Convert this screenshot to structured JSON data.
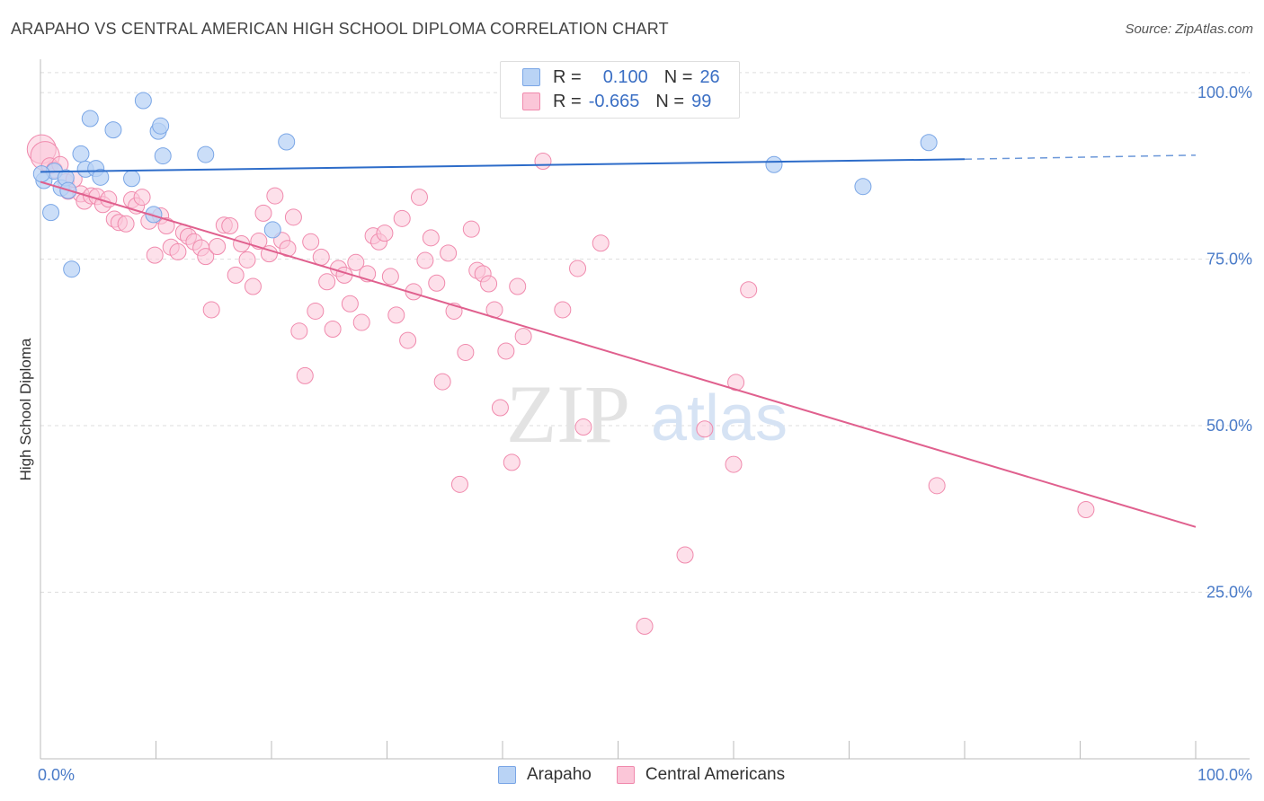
{
  "header": {
    "title": "ARAPAHO VS CENTRAL AMERICAN HIGH SCHOOL DIPLOMA CORRELATION CHART",
    "source": "Source: ZipAtlas.com"
  },
  "legend": {
    "rows": [
      {
        "r_label": "R =",
        "r_value": "0.100",
        "n_label": "N =",
        "n_value": "26",
        "color": "#b9d3f5",
        "border": "#7aa6e6"
      },
      {
        "r_label": "R =",
        "r_value": "-0.665",
        "n_label": "N =",
        "n_value": "99",
        "color": "#fbc6d8",
        "border": "#f08aad"
      }
    ]
  },
  "bottom_legend": {
    "items": [
      {
        "label": "Arapaho",
        "color": "#b9d3f5",
        "border": "#7aa6e6"
      },
      {
        "label": "Central Americans",
        "color": "#fbc6d8",
        "border": "#f08aad"
      }
    ]
  },
  "watermark": {
    "zip": "ZIP",
    "atlas": "atlas"
  },
  "chart_data": {
    "type": "scatter",
    "title": "ARAPAHO VS CENTRAL AMERICAN HIGH SCHOOL DIPLOMA CORRELATION CHART",
    "xlabel": "",
    "ylabel": "High School Diploma",
    "xlim": [
      0,
      100
    ],
    "ylim": [
      0,
      105
    ],
    "x_tick_labels": [
      "0.0%",
      "100.0%"
    ],
    "y_ticks": [
      25,
      50,
      75,
      100
    ],
    "y_tick_labels": [
      "25.0%",
      "50.0%",
      "75.0%",
      "100.0%"
    ],
    "grid": true,
    "series": [
      {
        "name": "Arapaho",
        "color": "#7aa6e6",
        "fill": "#b9d3f5",
        "line_color": "#2d6cc9",
        "trend": {
          "x0": 0,
          "y0": 88.1,
          "x1": 80,
          "y1": 90.0,
          "dash_to_x": 100,
          "dash_to_y": 90.6
        },
        "points": [
          {
            "x": 0.3,
            "y": 86.8
          },
          {
            "x": 0.9,
            "y": 82.0
          },
          {
            "x": 1.2,
            "y": 88.2
          },
          {
            "x": 1.8,
            "y": 85.7
          },
          {
            "x": 2.2,
            "y": 87.2
          },
          {
            "x": 2.4,
            "y": 85.3
          },
          {
            "x": 2.7,
            "y": 73.5
          },
          {
            "x": 3.5,
            "y": 90.8
          },
          {
            "x": 3.9,
            "y": 88.5
          },
          {
            "x": 4.3,
            "y": 96.1
          },
          {
            "x": 4.8,
            "y": 88.6
          },
          {
            "x": 5.2,
            "y": 87.3
          },
          {
            "x": 6.3,
            "y": 94.4
          },
          {
            "x": 7.9,
            "y": 87.1
          },
          {
            "x": 8.9,
            "y": 98.8
          },
          {
            "x": 9.8,
            "y": 81.7
          },
          {
            "x": 10.2,
            "y": 94.2
          },
          {
            "x": 10.4,
            "y": 95.0
          },
          {
            "x": 10.6,
            "y": 90.5
          },
          {
            "x": 14.3,
            "y": 90.7
          },
          {
            "x": 20.1,
            "y": 79.4
          },
          {
            "x": 21.3,
            "y": 92.6
          },
          {
            "x": 63.5,
            "y": 89.2
          },
          {
            "x": 71.2,
            "y": 85.9
          },
          {
            "x": 76.9,
            "y": 92.5
          },
          {
            "x": 0.1,
            "y": 87.8
          }
        ]
      },
      {
        "name": "Central Americans",
        "color": "#f08aad",
        "fill": "#fbc6d8",
        "line_color": "#e0608e",
        "trend": {
          "x0": 0,
          "y0": 86.6,
          "x1": 100,
          "y1": 34.8
        },
        "points": [
          {
            "x": 0.1,
            "y": 91.5,
            "big": true
          },
          {
            "x": 0.4,
            "y": 90.5,
            "big": true
          },
          {
            "x": 0.8,
            "y": 89.0
          },
          {
            "x": 1.2,
            "y": 88.4
          },
          {
            "x": 1.7,
            "y": 89.2
          },
          {
            "x": 2.2,
            "y": 86.6
          },
          {
            "x": 2.4,
            "y": 85.2
          },
          {
            "x": 2.9,
            "y": 87.0
          },
          {
            "x": 3.5,
            "y": 84.8
          },
          {
            "x": 3.8,
            "y": 83.7
          },
          {
            "x": 4.4,
            "y": 84.5
          },
          {
            "x": 4.9,
            "y": 84.4
          },
          {
            "x": 5.4,
            "y": 83.2
          },
          {
            "x": 5.9,
            "y": 84.0
          },
          {
            "x": 6.4,
            "y": 81.0
          },
          {
            "x": 6.8,
            "y": 80.5
          },
          {
            "x": 7.4,
            "y": 80.3
          },
          {
            "x": 7.9,
            "y": 83.9
          },
          {
            "x": 8.3,
            "y": 83.0
          },
          {
            "x": 8.8,
            "y": 84.3
          },
          {
            "x": 9.4,
            "y": 80.7
          },
          {
            "x": 9.9,
            "y": 75.6
          },
          {
            "x": 10.4,
            "y": 81.5
          },
          {
            "x": 10.9,
            "y": 80.0
          },
          {
            "x": 11.3,
            "y": 76.8
          },
          {
            "x": 11.9,
            "y": 76.1
          },
          {
            "x": 12.4,
            "y": 79.0
          },
          {
            "x": 12.8,
            "y": 78.4
          },
          {
            "x": 13.3,
            "y": 77.6
          },
          {
            "x": 13.9,
            "y": 76.7
          },
          {
            "x": 14.3,
            "y": 75.4
          },
          {
            "x": 14.8,
            "y": 67.4
          },
          {
            "x": 15.3,
            "y": 76.9
          },
          {
            "x": 15.9,
            "y": 80.1
          },
          {
            "x": 16.4,
            "y": 80.0
          },
          {
            "x": 16.9,
            "y": 72.6
          },
          {
            "x": 17.4,
            "y": 77.3
          },
          {
            "x": 17.9,
            "y": 74.9
          },
          {
            "x": 18.4,
            "y": 70.9
          },
          {
            "x": 18.9,
            "y": 77.7
          },
          {
            "x": 19.3,
            "y": 81.9
          },
          {
            "x": 19.8,
            "y": 75.8
          },
          {
            "x": 20.3,
            "y": 84.5
          },
          {
            "x": 20.9,
            "y": 77.8
          },
          {
            "x": 21.4,
            "y": 76.6
          },
          {
            "x": 21.9,
            "y": 81.3
          },
          {
            "x": 22.4,
            "y": 64.2
          },
          {
            "x": 22.9,
            "y": 57.5
          },
          {
            "x": 23.4,
            "y": 77.6
          },
          {
            "x": 23.8,
            "y": 67.2
          },
          {
            "x": 24.3,
            "y": 75.3
          },
          {
            "x": 24.8,
            "y": 71.6
          },
          {
            "x": 25.3,
            "y": 64.5
          },
          {
            "x": 25.8,
            "y": 73.6
          },
          {
            "x": 26.3,
            "y": 72.6
          },
          {
            "x": 26.8,
            "y": 68.3
          },
          {
            "x": 27.3,
            "y": 74.5
          },
          {
            "x": 27.8,
            "y": 65.5
          },
          {
            "x": 28.3,
            "y": 72.8
          },
          {
            "x": 28.8,
            "y": 78.5
          },
          {
            "x": 29.3,
            "y": 77.6
          },
          {
            "x": 29.8,
            "y": 78.9
          },
          {
            "x": 30.3,
            "y": 72.4
          },
          {
            "x": 30.8,
            "y": 66.6
          },
          {
            "x": 31.3,
            "y": 81.1
          },
          {
            "x": 31.8,
            "y": 62.8
          },
          {
            "x": 32.3,
            "y": 70.1
          },
          {
            "x": 32.8,
            "y": 84.3
          },
          {
            "x": 33.3,
            "y": 74.8
          },
          {
            "x": 33.8,
            "y": 78.2
          },
          {
            "x": 34.3,
            "y": 71.4
          },
          {
            "x": 34.8,
            "y": 56.6
          },
          {
            "x": 35.3,
            "y": 75.9
          },
          {
            "x": 35.8,
            "y": 67.2
          },
          {
            "x": 36.3,
            "y": 41.2
          },
          {
            "x": 36.8,
            "y": 61.0
          },
          {
            "x": 37.3,
            "y": 79.5
          },
          {
            "x": 37.8,
            "y": 73.3
          },
          {
            "x": 38.3,
            "y": 72.8
          },
          {
            "x": 38.8,
            "y": 71.3
          },
          {
            "x": 39.3,
            "y": 67.4
          },
          {
            "x": 39.8,
            "y": 52.7
          },
          {
            "x": 40.3,
            "y": 61.2
          },
          {
            "x": 40.8,
            "y": 44.5
          },
          {
            "x": 41.3,
            "y": 70.9
          },
          {
            "x": 41.8,
            "y": 63.4
          },
          {
            "x": 43.5,
            "y": 89.7
          },
          {
            "x": 45.2,
            "y": 67.4
          },
          {
            "x": 46.5,
            "y": 73.6
          },
          {
            "x": 47.0,
            "y": 49.8
          },
          {
            "x": 48.5,
            "y": 77.4
          },
          {
            "x": 52.3,
            "y": 19.9
          },
          {
            "x": 55.8,
            "y": 30.6
          },
          {
            "x": 57.5,
            "y": 49.5
          },
          {
            "x": 60.0,
            "y": 44.2
          },
          {
            "x": 60.2,
            "y": 56.5
          },
          {
            "x": 61.3,
            "y": 70.4
          },
          {
            "x": 77.6,
            "y": 41.0
          },
          {
            "x": 90.5,
            "y": 37.4
          }
        ]
      }
    ]
  }
}
